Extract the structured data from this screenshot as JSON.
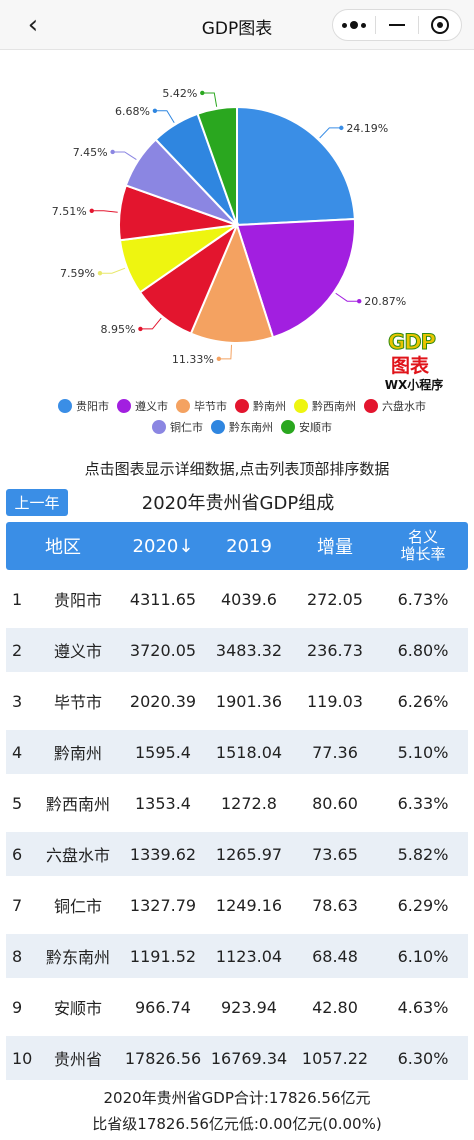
{
  "nav": {
    "title": "GDP图表",
    "back_icon": "chevron-left-icon",
    "more_icon": "more-dots-icon",
    "minimize_icon": "minus-icon",
    "close_icon": "target-icon"
  },
  "chart_data": {
    "type": "pie",
    "title": "",
    "labels": [
      "贵阳市",
      "遵义市",
      "毕节市",
      "黔南州",
      "黔西南州",
      "六盘水市",
      "铜仁市",
      "黔东南州",
      "安顺市"
    ],
    "values": [
      24.19,
      20.87,
      11.33,
      8.95,
      7.59,
      7.51,
      7.45,
      6.68,
      5.42
    ],
    "value_labels": [
      "24.19%",
      "20.87%",
      "11.33%",
      "8.95%",
      "7.59%",
      "7.51%",
      "7.45%",
      "6.68%",
      "5.42%"
    ],
    "colors": [
      "#3a8ee6",
      "#a21fe0",
      "#f4a261",
      "#e3152e",
      "#eef510",
      "#e3152e",
      "#8b86e2",
      "#2f86e0",
      "#2aa71f"
    ],
    "legend_position": "bottom"
  },
  "logo": {
    "gdp": "GDP",
    "zh": "图表",
    "wx": "WX小程序"
  },
  "hint": "点击图表显示详细数据,点击列表顶部排序数据",
  "prev_button": "上一年",
  "table_title": "2020年贵州省GDP组成",
  "table": {
    "headers": [
      "地区",
      "2020↓",
      "2019",
      "增量",
      "名义增长率"
    ],
    "header_last_lines": [
      "名义",
      "增长率"
    ],
    "rows": [
      [
        "1",
        "贵阳市",
        "4311.65",
        "4039.6",
        "272.05",
        "6.73%"
      ],
      [
        "2",
        "遵义市",
        "3720.05",
        "3483.32",
        "236.73",
        "6.80%"
      ],
      [
        "3",
        "毕节市",
        "2020.39",
        "1901.36",
        "119.03",
        "6.26%"
      ],
      [
        "4",
        "黔南州",
        "1595.4",
        "1518.04",
        "77.36",
        "5.10%"
      ],
      [
        "5",
        "黔西南州",
        "1353.4",
        "1272.8",
        "80.60",
        "6.33%"
      ],
      [
        "6",
        "六盘水市",
        "1339.62",
        "1265.97",
        "73.65",
        "5.82%"
      ],
      [
        "7",
        "铜仁市",
        "1327.79",
        "1249.16",
        "78.63",
        "6.29%"
      ],
      [
        "8",
        "黔东南州",
        "1191.52",
        "1123.04",
        "68.48",
        "6.10%"
      ],
      [
        "9",
        "安顺市",
        "966.74",
        "923.94",
        "42.80",
        "4.63%"
      ],
      [
        "10",
        "贵州省",
        "17826.56",
        "16769.34",
        "1057.22",
        "6.30%"
      ]
    ]
  },
  "footer": {
    "line1": "2020年贵州省GDP合计:17826.56亿元",
    "line2": "比省级17826.56亿元低:0.00亿元(0.00%)"
  }
}
